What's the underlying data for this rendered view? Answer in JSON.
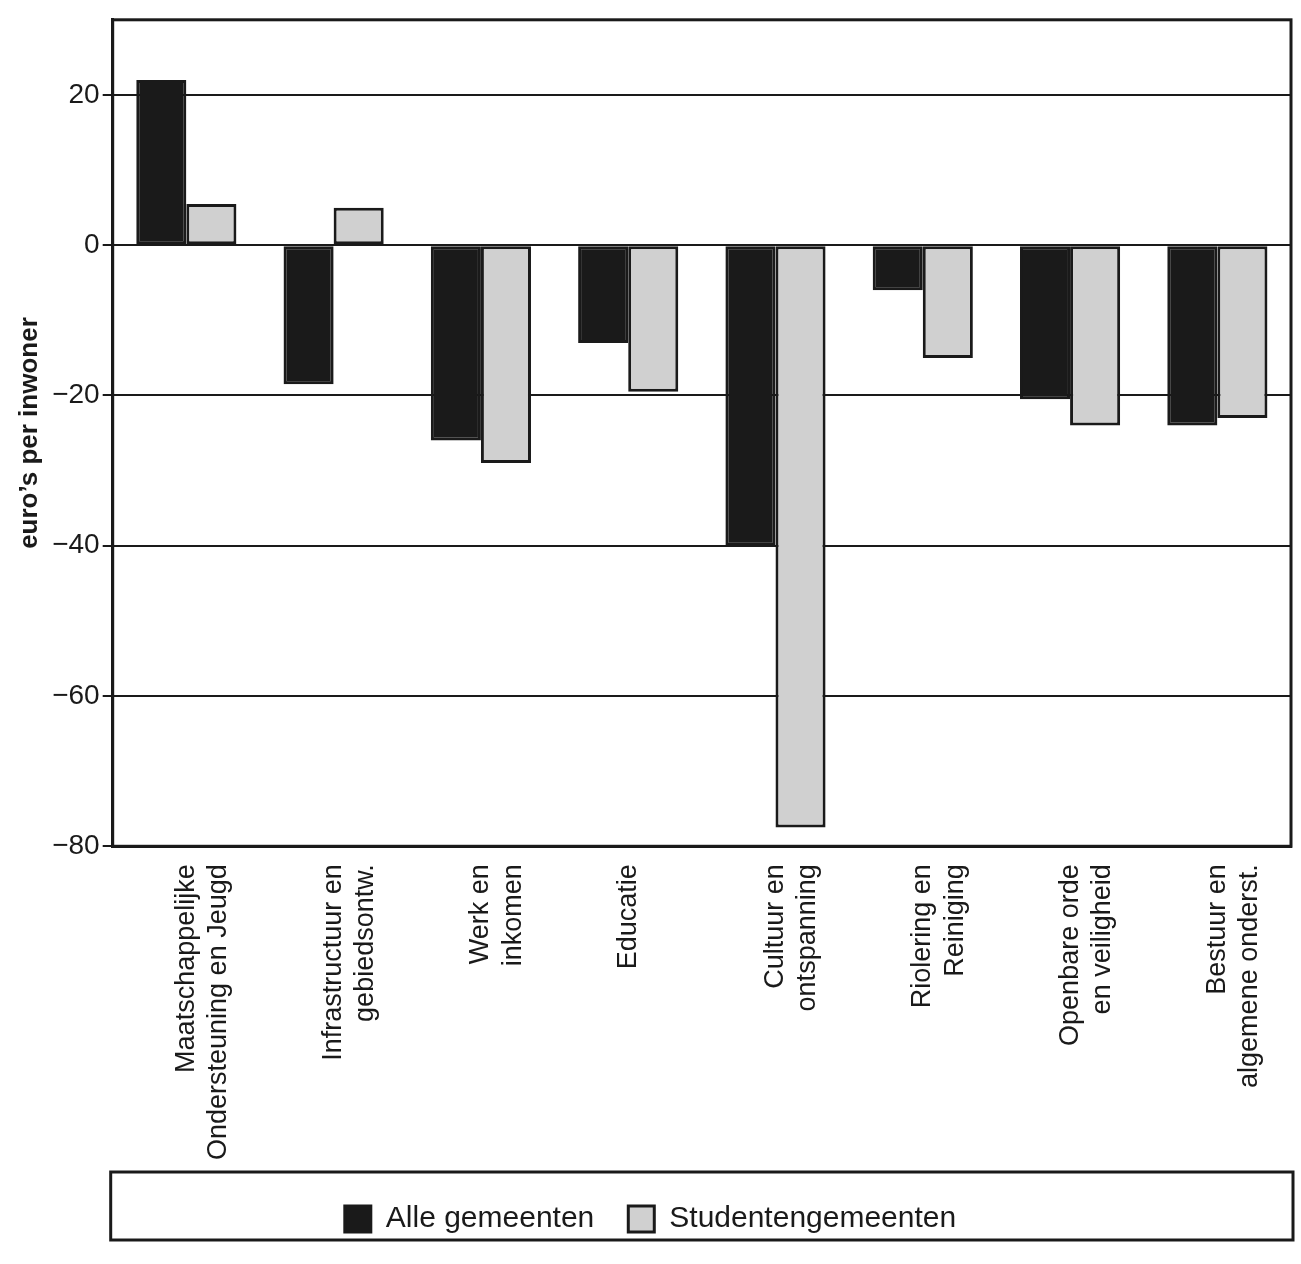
{
  "chart_data": {
    "type": "bar",
    "y_label": "euro’s per inwoner",
    "categories": [
      [
        "Maatschappelijke",
        "Ondersteuning en Jeugd"
      ],
      [
        "Infrastructuur en",
        "gebiedsontw."
      ],
      [
        "Werk en",
        "inkomen"
      ],
      [
        "Educatie"
      ],
      [
        "Cultuur en",
        "ontspanning"
      ],
      [
        "Riolering en",
        "Reiniging"
      ],
      [
        "Openbare orde",
        "en veiligheid"
      ],
      [
        "Bestuur en",
        "algemene onderst."
      ]
    ],
    "series": [
      {
        "name": "Alle gemeenten",
        "color": "#1a1a1a",
        "values": [
          22,
          -18.5,
          -26,
          -13,
          -40,
          -6,
          -20.5,
          -24
        ]
      },
      {
        "name": "Studentengemeenten",
        "color": "#d0d0d0",
        "values": [
          5.5,
          5,
          -29,
          -19.5,
          -77.5,
          -15,
          -24,
          -23
        ]
      }
    ],
    "ylim": [
      -80,
      30
    ],
    "yticks": [
      {
        "value": -80,
        "label": "−80"
      },
      {
        "value": -60,
        "label": "−60"
      },
      {
        "value": -40,
        "label": "−40"
      },
      {
        "value": -20,
        "label": "−20"
      },
      0,
      20
    ],
    "grid": true,
    "legend": "bottom"
  }
}
